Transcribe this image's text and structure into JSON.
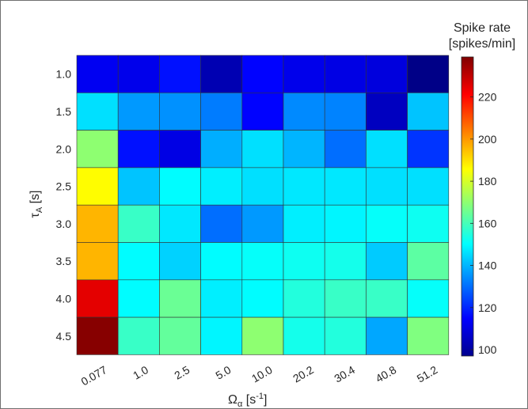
{
  "chart_data": {
    "type": "heatmap",
    "title": "",
    "x_categories": [
      "0.077",
      "1.0",
      "2.5",
      "5.0",
      "10.0",
      "20.2",
      "30.4",
      "40.8",
      "51.2"
    ],
    "y_categories": [
      "1.0",
      "1.5",
      "2.0",
      "2.5",
      "3.0",
      "3.5",
      "4.0",
      "4.5"
    ],
    "xlabel": {
      "main": "Ω",
      "sub": "α",
      "unit_pre": " [s",
      "unit_sup": "-1",
      "unit_post": "]"
    },
    "ylabel": {
      "main": "τ",
      "sub": "A",
      "unit": " [s]"
    },
    "values": [
      [
        113,
        112,
        117,
        104,
        115,
        112,
        111,
        110,
        98
      ],
      [
        146,
        136,
        135,
        132,
        115,
        134,
        133,
        106,
        142
      ],
      [
        170,
        117,
        111,
        139,
        146,
        140,
        130,
        146,
        122
      ],
      [
        186,
        142,
        150,
        148,
        146,
        147,
        147,
        146,
        146
      ],
      [
        196,
        158,
        147,
        130,
        136,
        148,
        149,
        151,
        152
      ],
      [
        196,
        150,
        144,
        150,
        151,
        152,
        153,
        143,
        163
      ],
      [
        225,
        150,
        165,
        148,
        150,
        155,
        158,
        158,
        151
      ],
      [
        238,
        158,
        164,
        149,
        170,
        153,
        155,
        138,
        168
      ]
    ],
    "colorbar": {
      "title_line1": "Spike rate",
      "title_line2": "[spikes/min]",
      "min": 97,
      "max": 239,
      "ticks": [
        "100",
        "120",
        "140",
        "160",
        "180",
        "200",
        "220"
      ],
      "colormap": "jet"
    }
  }
}
